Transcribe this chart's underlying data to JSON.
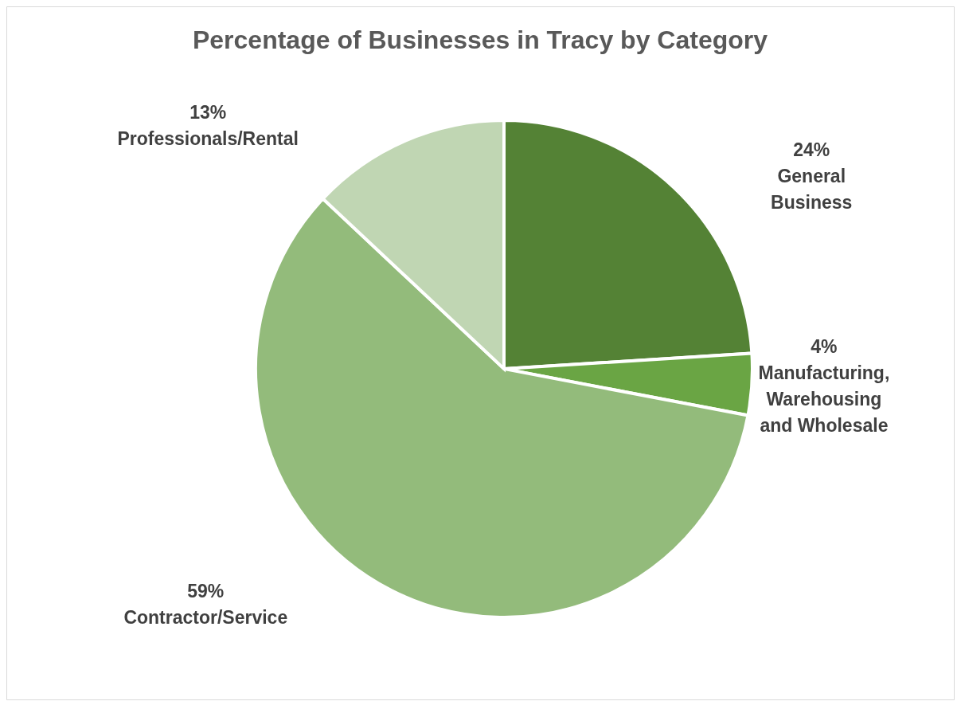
{
  "chart_data": {
    "type": "pie",
    "title": "Percentage of Businesses in Tracy by Category",
    "categories": [
      "General Business",
      "Manufacturing, Warehousing and Wholesale",
      "Contractor/Service",
      "Professionals/Rental"
    ],
    "values": [
      24,
      4,
      59,
      13
    ],
    "value_labels": [
      "24%",
      "4%",
      "59%",
      "13%"
    ],
    "colors": [
      "#548235",
      "#6aa544",
      "#93bb7b",
      "#c0d6b3"
    ]
  }
}
